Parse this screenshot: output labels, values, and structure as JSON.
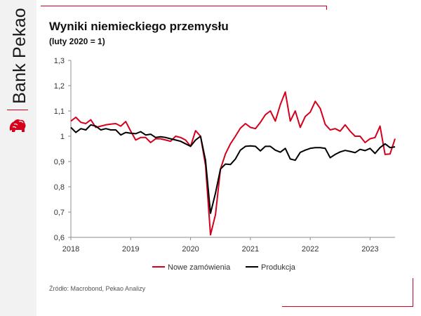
{
  "brand": {
    "name": "Bank Pekao"
  },
  "colors": {
    "accent": "#d6001c",
    "series_1": "#d6001c",
    "series_2": "#000000"
  },
  "source_note": "Źródło: Macrobond, Pekao Analizy",
  "chart_data": {
    "type": "line",
    "title": "Wyniki niemieckiego przemysłu",
    "subtitle": "(luty 2020 = 1)",
    "xlabel": "",
    "ylabel": "",
    "ylim": [
      0.6,
      1.3
    ],
    "yticks": [
      "0,6",
      "0,7",
      "0,8",
      "0,9",
      "1",
      "1,1",
      "1,2",
      "1,3"
    ],
    "xlim": [
      2018.0,
      2023.417
    ],
    "xticks": [
      "2018",
      "2019",
      "2020",
      "2021",
      "2022",
      "2023"
    ],
    "grid": false,
    "legend_position": "bottom",
    "series": [
      {
        "name": "Nowe zamówienia",
        "color": "#d6001c",
        "start": "2018-01",
        "values": [
          1.06,
          1.075,
          1.055,
          1.05,
          1.065,
          1.035,
          1.04,
          1.045,
          1.048,
          1.05,
          1.04,
          1.058,
          1.02,
          0.985,
          0.995,
          0.995,
          0.975,
          0.99,
          0.99,
          0.985,
          0.98,
          1.0,
          0.995,
          0.985,
          0.96,
          1.022,
          1.0,
          0.885,
          0.61,
          0.69,
          0.87,
          0.93,
          0.97,
          1.0,
          1.032,
          1.05,
          1.035,
          1.03,
          1.055,
          1.085,
          1.1,
          1.06,
          1.125,
          1.175,
          1.06,
          1.1,
          1.035,
          1.078,
          1.095,
          1.138,
          1.11,
          1.047,
          1.025,
          1.03,
          1.02,
          1.045,
          1.02,
          1.0,
          1.0,
          0.975,
          0.99,
          0.995,
          1.04,
          0.928,
          0.93,
          0.99
        ]
      },
      {
        "name": "Produkcja",
        "color": "#000000",
        "start": "2018-01",
        "values": [
          1.035,
          1.015,
          1.03,
          1.025,
          1.045,
          1.04,
          1.025,
          1.03,
          1.025,
          1.025,
          1.005,
          1.015,
          1.012,
          1.01,
          1.018,
          1.005,
          1.008,
          0.995,
          0.998,
          0.995,
          0.99,
          0.985,
          0.98,
          0.97,
          0.96,
          0.985,
          1.0,
          0.905,
          0.695,
          0.775,
          0.87,
          0.89,
          0.888,
          0.91,
          0.945,
          0.96,
          0.962,
          0.96,
          0.942,
          0.96,
          0.96,
          0.945,
          0.937,
          0.952,
          0.91,
          0.905,
          0.936,
          0.945,
          0.952,
          0.955,
          0.955,
          0.952,
          0.915,
          0.928,
          0.938,
          0.944,
          0.94,
          0.935,
          0.948,
          0.943,
          0.952,
          0.932,
          0.955,
          0.97,
          0.955,
          0.958
        ]
      }
    ]
  }
}
